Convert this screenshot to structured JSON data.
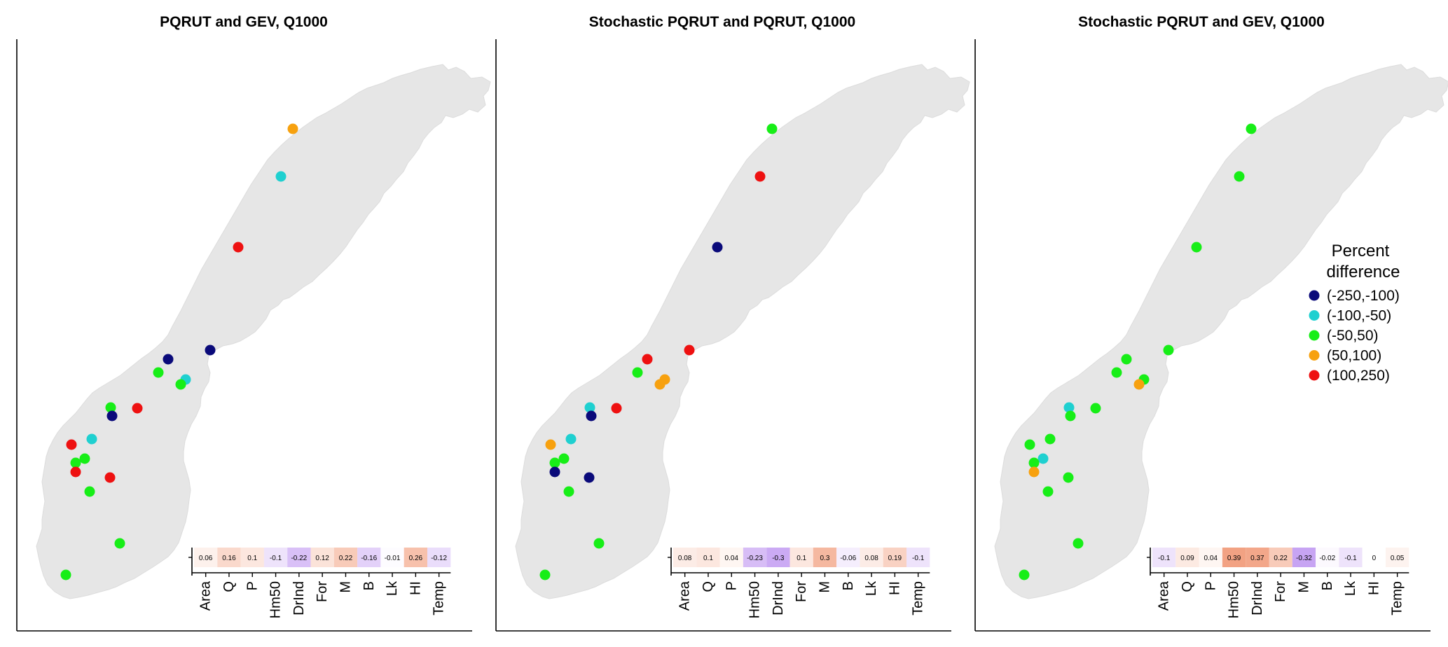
{
  "legend": {
    "title_line1": "Percent",
    "title_line2": "difference",
    "items": [
      {
        "key": "vneg",
        "label": "(-250,-100)",
        "color": "#0a0a7a"
      },
      {
        "key": "neg",
        "label": "(-100,-50)",
        "color": "#1fd0d0"
      },
      {
        "key": "mid",
        "label": "(-50,50)",
        "color": "#17ee17"
      },
      {
        "key": "pos",
        "label": "(50,100)",
        "color": "#f7a10f"
      },
      {
        "key": "vpos",
        "label": "(100,250)",
        "color": "#ee1111"
      }
    ]
  },
  "heat_colors": {
    "negative": "#b98df0",
    "positive": "#f2a080",
    "neutral": "#ffffff"
  },
  "map_color": "#e6e6e6",
  "panels": [
    {
      "title": "PQRUT and GEV, Q1000",
      "variables": [
        "Area",
        "Q",
        "P",
        "Hm50",
        "DrInd",
        "For",
        "M",
        "B",
        "Lk",
        "HI",
        "Temp"
      ],
      "values": [
        0.06,
        0.16,
        0.1,
        -0.1,
        -0.22,
        0.12,
        0.22,
        -0.16,
        -0.01,
        0.26,
        -0.12
      ],
      "stations": [
        "pos",
        "neg",
        "vpos",
        "vneg",
        "vneg",
        "mid",
        "neg",
        "mid",
        "mid",
        "vpos",
        "vneg",
        "neg",
        "vpos",
        "mid",
        "mid",
        "vpos",
        "vpos",
        "mid",
        "mid",
        "mid"
      ]
    },
    {
      "title": "Stochastic PQRUT and PQRUT, Q1000",
      "variables": [
        "Area",
        "Q",
        "P",
        "Hm50",
        "DrInd",
        "For",
        "M",
        "B",
        "Lk",
        "HI",
        "Temp"
      ],
      "values": [
        0.08,
        0.1,
        0.04,
        -0.23,
        -0.3,
        0.1,
        0.3,
        -0.06,
        0.08,
        0.19,
        -0.1
      ],
      "stations": [
        "mid",
        "vpos",
        "vneg",
        "vpos",
        "vpos",
        "mid",
        "pos",
        "pos",
        "neg",
        "vpos",
        "vneg",
        "neg",
        "pos",
        "mid",
        "mid",
        "vneg",
        "vneg",
        "mid",
        "mid",
        "mid"
      ]
    },
    {
      "title": "Stochastic PQRUT and GEV, Q1000",
      "variables": [
        "Area",
        "Q",
        "P",
        "Hm50",
        "DrInd",
        "For",
        "M",
        "B",
        "Lk",
        "HI",
        "Temp"
      ],
      "values": [
        -0.1,
        0.09,
        0.04,
        0.39,
        0.37,
        0.22,
        -0.32,
        -0.02,
        -0.1,
        0,
        0.05
      ],
      "stations": [
        "mid",
        "mid",
        "mid",
        "mid",
        "mid",
        "mid",
        "mid",
        "pos",
        "neg",
        "mid",
        "mid",
        "mid",
        "mid",
        "neg",
        "mid",
        "pos",
        "mid",
        "mid",
        "mid",
        "mid"
      ]
    }
  ]
}
